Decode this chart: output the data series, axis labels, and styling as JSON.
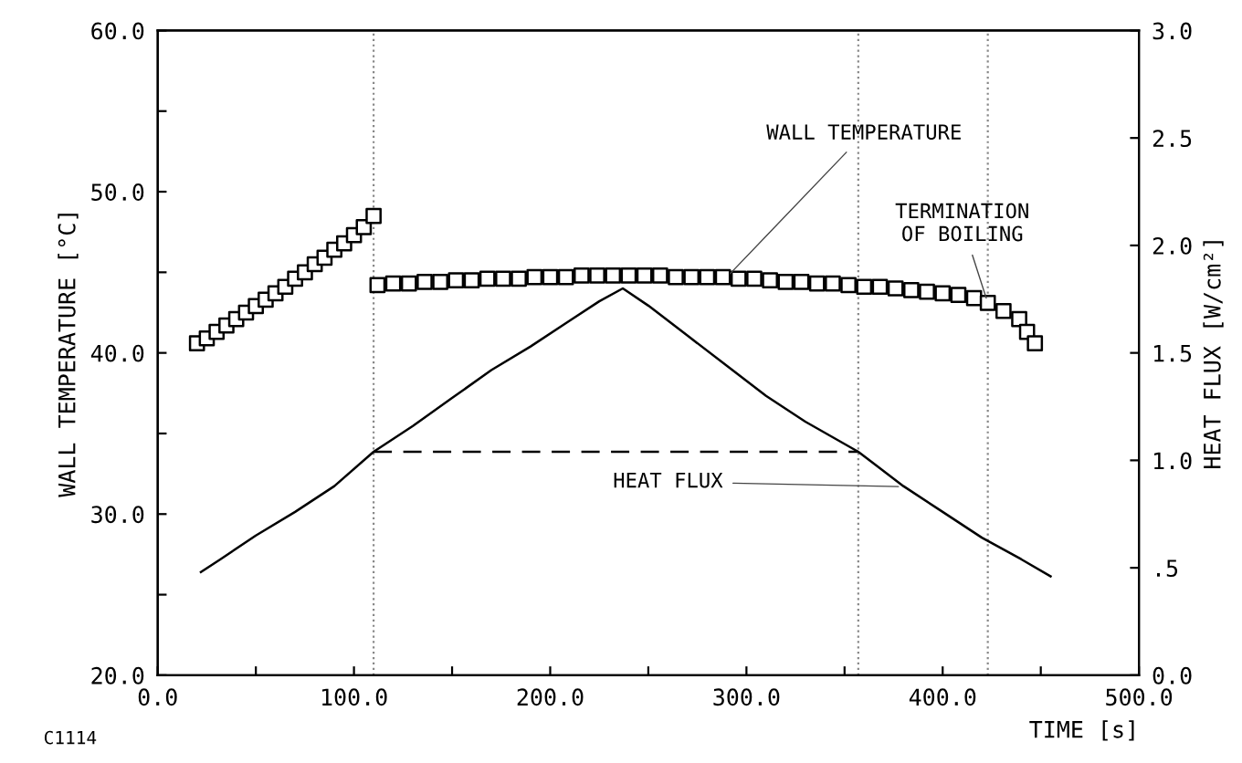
{
  "chart_data": {
    "type": "scatter",
    "xlabel": "TIME [s]",
    "ylabel": "WALL TEMPERATURE [°C]",
    "y2label": "HEAT FLUX [W/cm²]",
    "series": [
      {
        "marker": "square",
        "color": "#000000",
        "x": [
          20,
          25,
          30,
          35,
          40,
          45,
          50,
          55,
          60,
          65,
          70,
          75,
          80,
          85,
          90,
          95,
          100,
          105,
          110,
          112,
          120,
          128,
          136,
          144,
          152,
          160,
          168,
          176,
          184,
          192,
          200,
          208,
          216,
          224,
          232,
          240,
          248,
          256,
          264,
          272,
          280,
          288,
          296,
          304,
          312,
          320,
          328,
          336,
          344,
          352,
          360,
          368,
          376,
          384,
          392,
          400,
          408,
          416,
          423,
          431,
          439,
          443,
          447
        ],
        "values": [
          40.6,
          40.9,
          41.3,
          41.7,
          42.1,
          42.5,
          42.9,
          43.3,
          43.7,
          44.1,
          44.6,
          45.0,
          45.5,
          45.9,
          46.4,
          46.8,
          47.3,
          47.8,
          48.5,
          44.2,
          44.3,
          44.3,
          44.4,
          44.4,
          44.5,
          44.5,
          44.6,
          44.6,
          44.6,
          44.7,
          44.7,
          44.7,
          44.8,
          44.8,
          44.8,
          44.8,
          44.8,
          44.8,
          44.7,
          44.7,
          44.7,
          44.7,
          44.6,
          44.6,
          44.5,
          44.4,
          44.4,
          44.3,
          44.3,
          44.2,
          44.1,
          44.1,
          44.0,
          43.9,
          43.8,
          43.7,
          43.6,
          43.4,
          43.1,
          42.6,
          42.1,
          41.3,
          40.6
        ]
      },
      {
        "type": "line",
        "axis": "y2",
        "marker": "none",
        "line_style": "solid",
        "color": "#000000",
        "x": [
          22,
          32,
          50,
          70,
          90,
          110,
          130,
          150,
          170,
          190,
          210,
          225,
          237,
          250,
          270,
          290,
          310,
          330,
          357,
          380,
          400,
          420,
          440,
          455
        ],
        "values": [
          0.48,
          0.54,
          0.65,
          0.76,
          0.88,
          1.04,
          1.16,
          1.29,
          1.42,
          1.53,
          1.65,
          1.74,
          1.8,
          1.72,
          1.58,
          1.44,
          1.3,
          1.18,
          1.04,
          0.88,
          0.76,
          0.64,
          0.54,
          0.46
        ]
      },
      {
        "type": "line",
        "axis": "y2",
        "marker": "none",
        "line_style": "dashed",
        "color": "#000000",
        "x": [
          110,
          357
        ],
        "values": [
          1.04,
          1.04
        ]
      }
    ],
    "xlim": [
      0,
      500
    ],
    "xticks": [
      {
        "value": 0,
        "label": "0.0"
      },
      {
        "value": 50,
        "label": null
      },
      {
        "value": 100,
        "label": "100.0"
      },
      {
        "value": 150,
        "label": null
      },
      {
        "value": 200,
        "label": "200.0"
      },
      {
        "value": 250,
        "label": null
      },
      {
        "value": 300,
        "label": "300.0"
      },
      {
        "value": 350,
        "label": null
      },
      {
        "value": 400,
        "label": "400.0"
      },
      {
        "value": 450,
        "label": null
      },
      {
        "value": 500,
        "label": "500.0"
      }
    ],
    "ylim": [
      20,
      60
    ],
    "yticks": [
      {
        "value": 20,
        "label": "20.0"
      },
      {
        "value": 25,
        "label": null
      },
      {
        "value": 30,
        "label": "30.0"
      },
      {
        "value": 35,
        "label": null
      },
      {
        "value": 40,
        "label": "40.0"
      },
      {
        "value": 45,
        "label": null
      },
      {
        "value": 50,
        "label": "50.0"
      },
      {
        "value": 55,
        "label": null
      },
      {
        "value": 60,
        "label": "60.0"
      }
    ],
    "y2lim": [
      0,
      3
    ],
    "y2ticks": [
      {
        "value": 0,
        "label": "0.0"
      },
      {
        "value": 0.5,
        "label": ".5"
      },
      {
        "value": 1,
        "label": "1.0"
      },
      {
        "value": 1.5,
        "label": "1.5"
      },
      {
        "value": 2,
        "label": "2.0"
      },
      {
        "value": 2.5,
        "label": "2.5"
      },
      {
        "value": 3,
        "label": "3.0"
      }
    ],
    "ref_lines": [
      {
        "axis": "x",
        "value": 110,
        "line_style": "dotted",
        "color": "#888888"
      },
      {
        "axis": "x",
        "value": 357,
        "line_style": "dotted",
        "color": "#888888"
      },
      {
        "axis": "x",
        "value": 423,
        "line_style": "dotted",
        "color": "#888888"
      }
    ],
    "annotations": [
      {
        "text": "WALL TEMPERATURE",
        "x": 290,
        "y": 44.7
      },
      {
        "text": "TERMINATION\nOF BOILING",
        "x": 423,
        "y": 43.1
      },
      {
        "text": "HEAT FLUX",
        "x": 380,
        "y": 31.7
      },
      "C1114"
    ],
    "grid": false,
    "legend": false
  }
}
